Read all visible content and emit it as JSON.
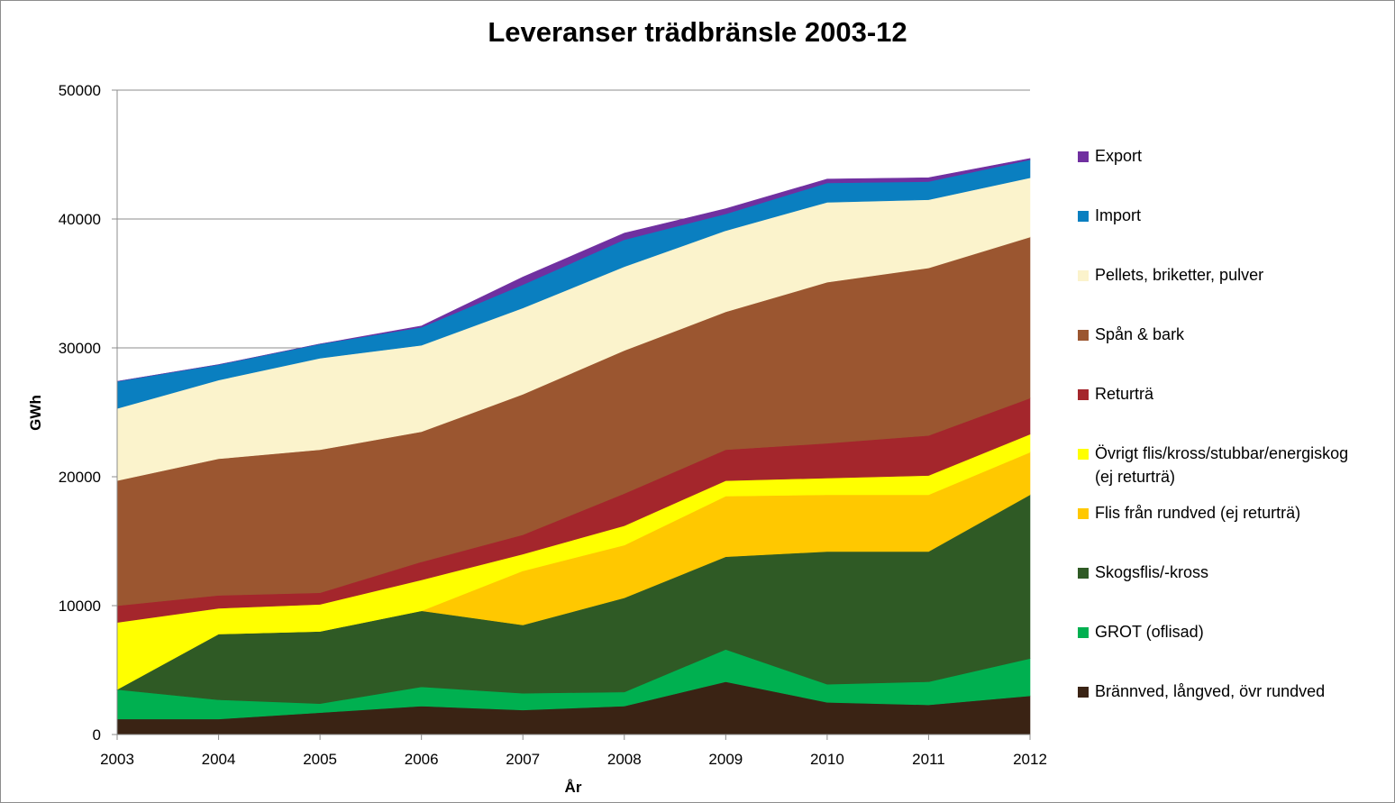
{
  "chart_data": {
    "type": "area",
    "stacked": true,
    "title": "Leveranser trädbränsle 2003-12",
    "xlabel": "År",
    "ylabel": "GWh",
    "ylim": [
      0,
      50000
    ],
    "yticks": [
      0,
      10000,
      20000,
      30000,
      40000,
      50000
    ],
    "ytick_labels": [
      "0",
      "10000",
      "20000",
      "30000",
      "40000",
      "50000"
    ],
    "grid": "horizontal",
    "legend_position": "right",
    "categories": [
      "2003",
      "2004",
      "2005",
      "2006",
      "2007",
      "2008",
      "2009",
      "2010",
      "2011",
      "2012"
    ],
    "series": [
      {
        "name": "Brännved, långved, övr rundved",
        "color": "#3a2314",
        "values": [
          1200,
          1200,
          1700,
          2200,
          1900,
          2200,
          4100,
          2500,
          2300,
          3000
        ]
      },
      {
        "name": "GROT (oflisad)",
        "color": "#00b050",
        "values": [
          2300,
          1500,
          700,
          1500,
          1300,
          1100,
          2500,
          1400,
          1800,
          2900
        ]
      },
      {
        "name": "Skogsflis/-kross",
        "color": "#2f5a25",
        "values": [
          0,
          5100,
          5600,
          5900,
          5300,
          7300,
          7200,
          10300,
          10100,
          12700
        ]
      },
      {
        "name": "Flis från rundved (ej returträ)",
        "color": "#ffc800",
        "values": [
          0,
          0,
          0,
          0,
          4200,
          4100,
          4700,
          4400,
          4400,
          3300
        ]
      },
      {
        "name": "Övrigt flis/kross/stubbar/energiskog (ej returträ)",
        "color": "#ffff00",
        "values": [
          5200,
          2000,
          2100,
          2400,
          1300,
          1500,
          1200,
          1300,
          1500,
          1400
        ]
      },
      {
        "name": "Returträ",
        "color": "#a4262c",
        "values": [
          1300,
          1000,
          900,
          1400,
          1500,
          2500,
          2400,
          2700,
          3100,
          2800
        ]
      },
      {
        "name": "Spån & bark",
        "color": "#9b5630",
        "values": [
          9700,
          10600,
          11100,
          10100,
          10900,
          11100,
          10700,
          12500,
          13000,
          12500
        ]
      },
      {
        "name": "Pellets, briketter, pulver",
        "color": "#fbf3cc",
        "values": [
          5600,
          6100,
          7100,
          6700,
          6700,
          6500,
          6300,
          6200,
          5300,
          4600
        ]
      },
      {
        "name": "Import",
        "color": "#0a7fc0",
        "values": [
          2100,
          1200,
          1100,
          1400,
          1800,
          2100,
          1300,
          1500,
          1400,
          1400
        ]
      },
      {
        "name": "Export",
        "color": "#7030a0",
        "values": [
          0,
          0,
          0,
          100,
          600,
          500,
          400,
          300,
          300,
          100
        ]
      }
    ]
  },
  "legend_order": [
    9,
    8,
    7,
    6,
    5,
    4,
    3,
    2,
    1,
    0
  ]
}
